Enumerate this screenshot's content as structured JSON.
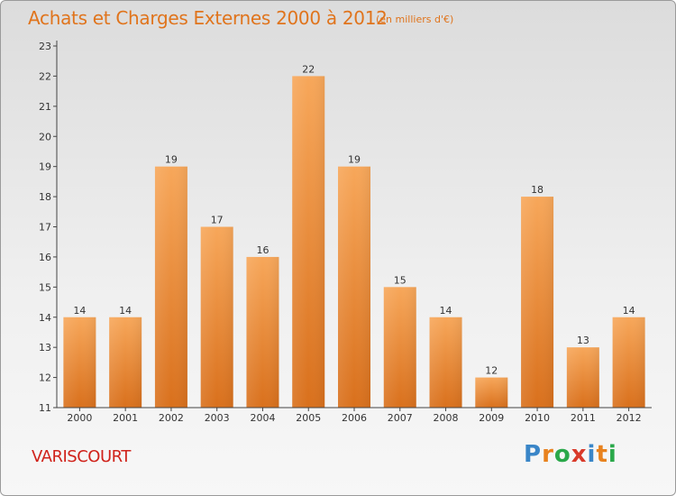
{
  "chart_data": {
    "type": "bar",
    "title": "Achats et Charges Externes 2000 à 2012",
    "subtitle": "(en milliers d'€)",
    "categories": [
      "2000",
      "2001",
      "2002",
      "2003",
      "2004",
      "2005",
      "2006",
      "2007",
      "2008",
      "2009",
      "2010",
      "2011",
      "2012"
    ],
    "values": [
      14,
      14,
      19,
      17,
      16,
      22,
      19,
      15,
      14,
      12,
      18,
      13,
      14
    ],
    "xlabel": "",
    "ylabel": "",
    "ylim": [
      11,
      23
    ],
    "yticks": [
      11,
      12,
      13,
      14,
      15,
      16,
      17,
      18,
      19,
      20,
      21,
      22,
      23
    ],
    "grid": false,
    "legend": "none",
    "bar_color": "#f0913a"
  },
  "footer": {
    "place": "VARISCOURT",
    "brand": "Proxiti",
    "brand_colors": [
      "#3a86c8",
      "#e8821e",
      "#2aa84a",
      "#d93a2a",
      "#3a86c8",
      "#e8821e",
      "#2aa84a"
    ]
  },
  "colors": {
    "title": "#e0741c",
    "place": "#d0231b",
    "axis": "#333333"
  }
}
